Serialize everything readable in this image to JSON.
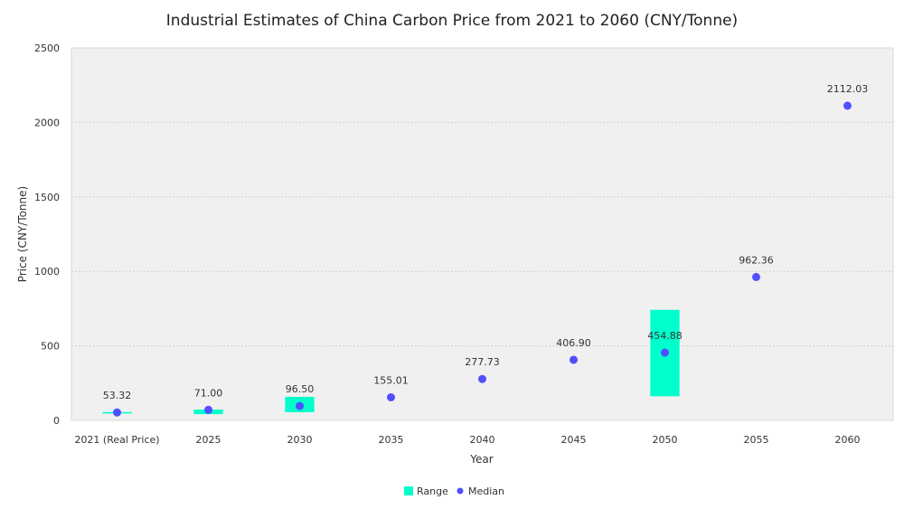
{
  "chart_data": {
    "type": "scatter",
    "title": "Industrial Estimates of China Carbon Price from 2021 to 2060 (CNY/Tonne)",
    "xlabel": "Year",
    "ylabel": "Price (CNY/Tonne)",
    "ylim": [
      0,
      2500
    ],
    "yticks": [
      0,
      500,
      1000,
      1500,
      2000,
      2500
    ],
    "grid": true,
    "legend_position": "bottom-center",
    "categories": [
      "2021 (Real Price)",
      "2025",
      "2030",
      "2035",
      "2040",
      "2045",
      "2050",
      "2055",
      "2060"
    ],
    "series": [
      {
        "name": "Range",
        "kind": "floating-bar",
        "color": "#00FFCC",
        "values": [
          [
            50,
            56
          ],
          [
            42,
            73
          ],
          [
            55,
            158
          ],
          null,
          null,
          null,
          [
            162,
            742
          ],
          null,
          null
        ]
      },
      {
        "name": "Median",
        "kind": "point",
        "color": "#4F4FFF",
        "values": [
          53.32,
          71.0,
          96.5,
          155.01,
          277.73,
          406.9,
          454.88,
          962.36,
          2112.03
        ],
        "labels": [
          "53.32",
          "71.00",
          "96.50",
          "155.01",
          "277.73",
          "406.90",
          "454.88",
          "962.36",
          "2112.03"
        ]
      }
    ]
  },
  "colors": {
    "plot_background": "#F0F0F0",
    "grid": "#D0D0D0",
    "range": "#00FFCC",
    "median": "#4F4FFF"
  }
}
